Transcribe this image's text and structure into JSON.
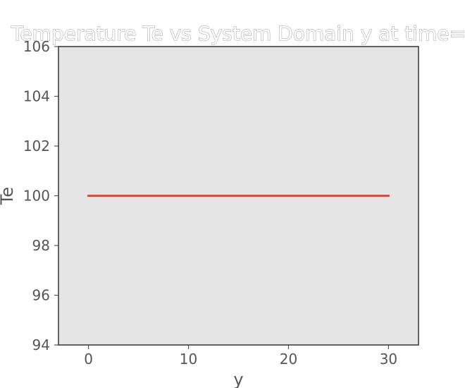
{
  "chart_data": {
    "type": "line",
    "title": "Temperature Te vs System Domain y at time=",
    "xlabel": "y",
    "ylabel": "Te",
    "xlim": [
      -3,
      33
    ],
    "ylim": [
      94,
      106
    ],
    "xticks": [
      0,
      10,
      20,
      30
    ],
    "yticks": [
      94,
      96,
      98,
      100,
      102,
      104,
      106
    ],
    "grid": false,
    "series": [
      {
        "x": [
          0,
          30
        ],
        "y": [
          100,
          100
        ],
        "color": "#e24a33"
      }
    ],
    "colors": {
      "plot_background": "#e5e5e5",
      "axes_edge": "#333333",
      "tick_text": "#555555"
    }
  }
}
